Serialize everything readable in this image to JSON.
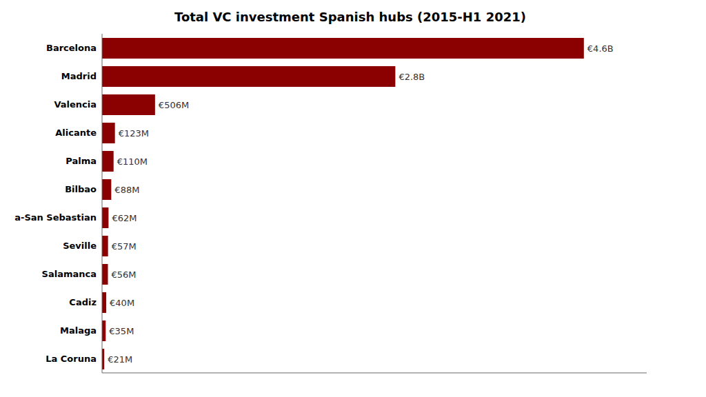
{
  "chart_data": {
    "type": "bar",
    "orientation": "horizontal",
    "title": "Total VC investment Spanish hubs (2015-H1 2021)",
    "categories": [
      "Barcelona",
      "Madrid",
      "Valencia",
      "Alicante",
      "Palma",
      "Bilbao",
      "a-San Sebastian",
      "Seville",
      "Salamanca",
      "Cadiz",
      "Malaga",
      "La Coruna"
    ],
    "values": [
      4600,
      2800,
      506,
      123,
      110,
      88,
      62,
      57,
      56,
      40,
      35,
      21
    ],
    "value_labels": [
      "€4.6B",
      "€2.8B",
      "€506M",
      "€123M",
      "€110M",
      "€88M",
      "€62M",
      "€57M",
      "€56M",
      "€40M",
      "€35M",
      "€21M"
    ],
    "data_labels": true,
    "color": "#8b0000",
    "xlim": [
      0,
      5200
    ],
    "tick_labels": "y",
    "grid": false
  }
}
